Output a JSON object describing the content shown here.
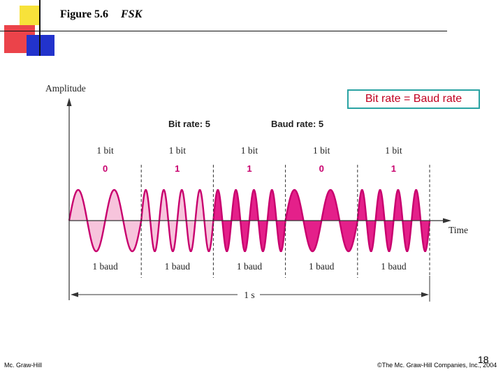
{
  "slide": {
    "figure_label": "Figure 5.6",
    "figure_title": "FSK",
    "callout": "Bit rate = Baud rate",
    "page_number": "18",
    "footer_left": "Mc. Graw-Hill",
    "footer_right": "©The Mc. Graw-Hill Companies, Inc., 2004"
  },
  "diagram": {
    "y_axis_label": "Amplitude",
    "x_axis_label": "Time",
    "bit_rate_label": "Bit rate: 5",
    "baud_rate_label": "Baud rate: 5",
    "duration_label": "1 s",
    "bit_unit_label": "1 bit",
    "baud_unit_label": "1 baud",
    "bits": [
      "0",
      "1",
      "1",
      "0",
      "1"
    ],
    "cycles_per_bit": {
      "0": 2,
      "1": 4
    },
    "colors": {
      "wave": "#c8006e",
      "fill_light": "#f7c4dc",
      "fill_dark": "#e4208a",
      "bits": "#c8006e",
      "axis": "#333333"
    }
  }
}
